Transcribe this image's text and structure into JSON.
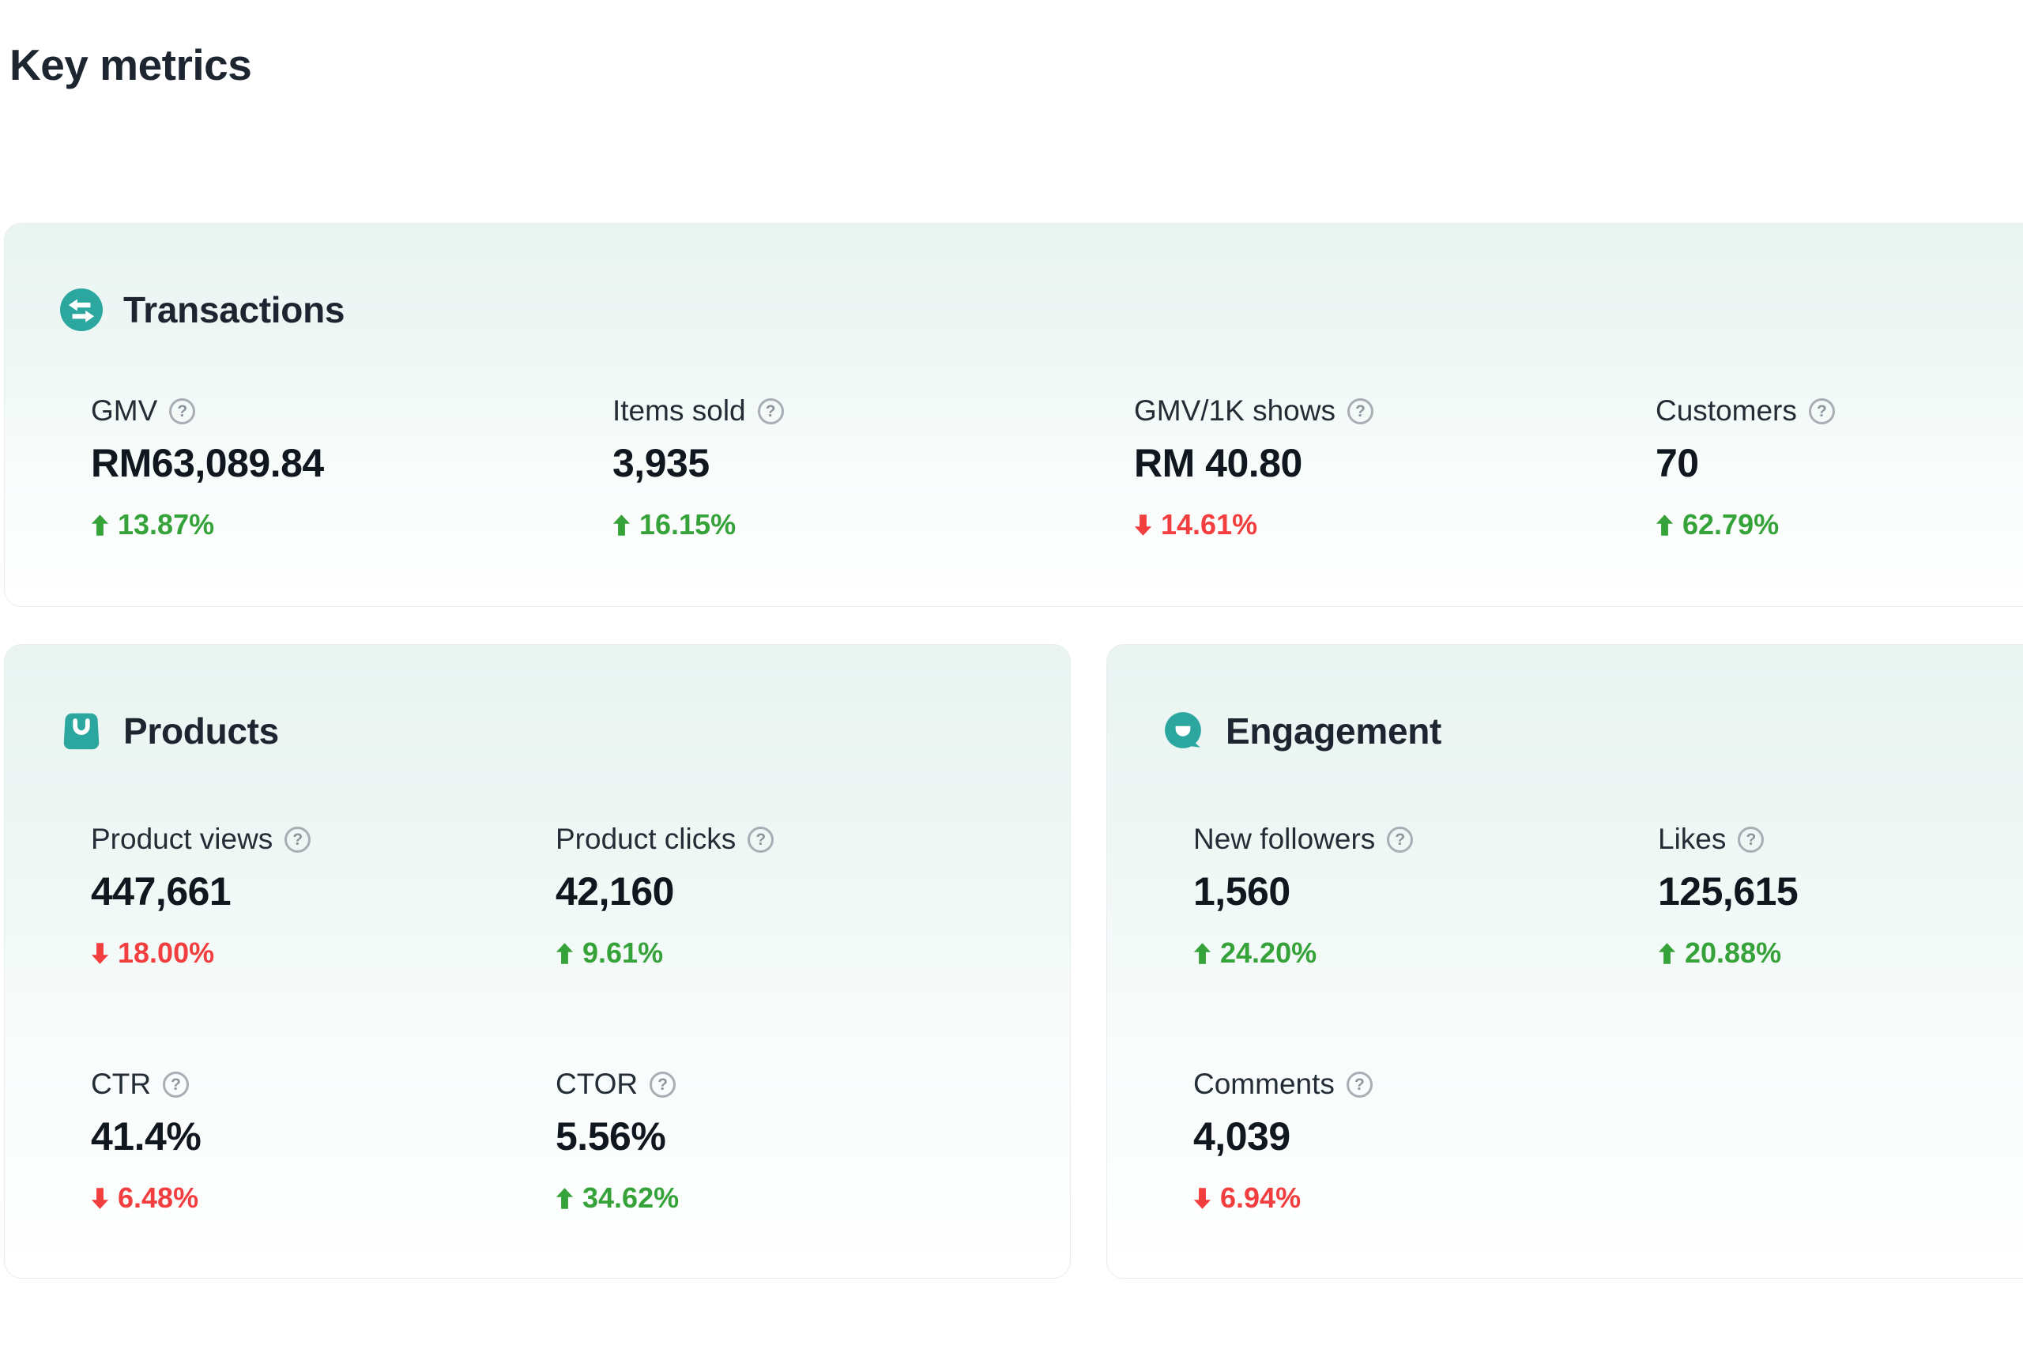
{
  "page": {
    "title": "Key metrics"
  },
  "colors": {
    "teal": "#2ca7a0",
    "green": "#36a33a",
    "red": "#f23e3e",
    "card_top": "#e9f4f1"
  },
  "help_glyph": "?",
  "cards": [
    {
      "id": "transactions",
      "title": "Transactions",
      "icon": "swap-icon",
      "metrics": [
        {
          "label": "GMV",
          "value": "RM63,089.84",
          "delta": "13.87%",
          "direction": "up"
        },
        {
          "label": "Items sold",
          "value": "3,935",
          "delta": "16.15%",
          "direction": "up"
        },
        {
          "label": "GMV/1K shows",
          "value": "RM 40.80",
          "delta": "14.61%",
          "direction": "down"
        },
        {
          "label": "Customers",
          "value": "70",
          "delta": "62.79%",
          "direction": "up"
        }
      ]
    },
    {
      "id": "products",
      "title": "Products",
      "icon": "bag-icon",
      "metrics": [
        {
          "label": "Product views",
          "value": "447,661",
          "delta": "18.00%",
          "direction": "down"
        },
        {
          "label": "Product clicks",
          "value": "42,160",
          "delta": "9.61%",
          "direction": "up"
        },
        {
          "label": "CTR",
          "value": "41.4%",
          "delta": "6.48%",
          "direction": "down"
        },
        {
          "label": "CTOR",
          "value": "5.56%",
          "delta": "34.62%",
          "direction": "up"
        }
      ]
    },
    {
      "id": "engagement",
      "title": "Engagement",
      "icon": "chat-icon",
      "metrics": [
        {
          "label": "New followers",
          "value": "1,560",
          "delta": "24.20%",
          "direction": "up"
        },
        {
          "label": "Likes",
          "value": "125,615",
          "delta": "20.88%",
          "direction": "up"
        },
        {
          "label": "Comments",
          "value": "4,039",
          "delta": "6.94%",
          "direction": "down"
        }
      ]
    }
  ]
}
